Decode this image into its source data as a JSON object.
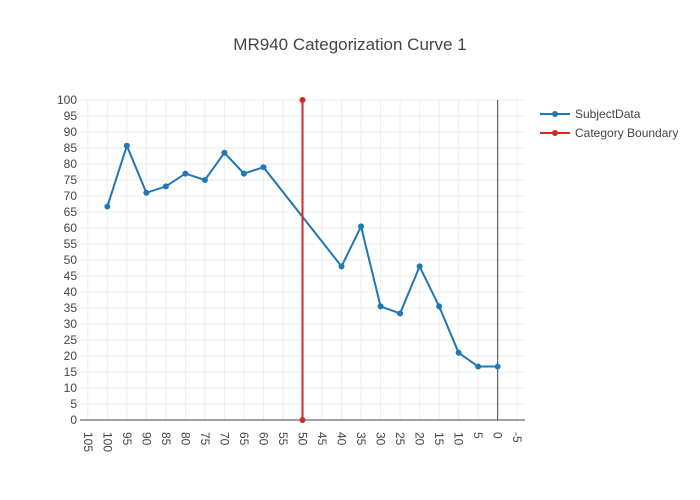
{
  "chart_data": {
    "type": "line",
    "title": "MR940 Categorization Curve 1",
    "xlabel": "",
    "ylabel": "",
    "x_reversed": true,
    "xlim": [
      107,
      -7
    ],
    "ylim": [
      0,
      100
    ],
    "x_ticks": [
      105,
      100,
      95,
      90,
      85,
      80,
      75,
      70,
      65,
      60,
      55,
      50,
      45,
      40,
      35,
      30,
      25,
      20,
      15,
      10,
      5,
      0,
      -5
    ],
    "y_ticks": [
      0,
      5,
      10,
      15,
      20,
      25,
      30,
      35,
      40,
      45,
      50,
      55,
      60,
      65,
      70,
      75,
      80,
      85,
      90,
      95,
      100
    ],
    "grid": true,
    "legend_position": "right",
    "series": [
      {
        "name": "SubjectData",
        "color": "#1f77b4",
        "points": [
          {
            "x": 100,
            "y": 66.7
          },
          {
            "x": 95,
            "y": 85.7
          },
          {
            "x": 90,
            "y": 71
          },
          {
            "x": 85,
            "y": 73
          },
          {
            "x": 80,
            "y": 77
          },
          {
            "x": 75,
            "y": 75
          },
          {
            "x": 70,
            "y": 83.5
          },
          {
            "x": 65,
            "y": 77
          },
          {
            "x": 60,
            "y": 79
          },
          {
            "x": 40,
            "y": 48
          },
          {
            "x": 35,
            "y": 60.5
          },
          {
            "x": 30,
            "y": 35.5
          },
          {
            "x": 25,
            "y": 33.3
          },
          {
            "x": 20,
            "y": 48
          },
          {
            "x": 15,
            "y": 35.5
          },
          {
            "x": 10,
            "y": 21
          },
          {
            "x": 5,
            "y": 16.7
          },
          {
            "x": 0,
            "y": 16.7
          }
        ]
      },
      {
        "name": "Category Boundary",
        "color": "#d62728",
        "points": [
          {
            "x": 50,
            "y": 0
          },
          {
            "x": 50,
            "y": 100
          }
        ]
      }
    ]
  }
}
